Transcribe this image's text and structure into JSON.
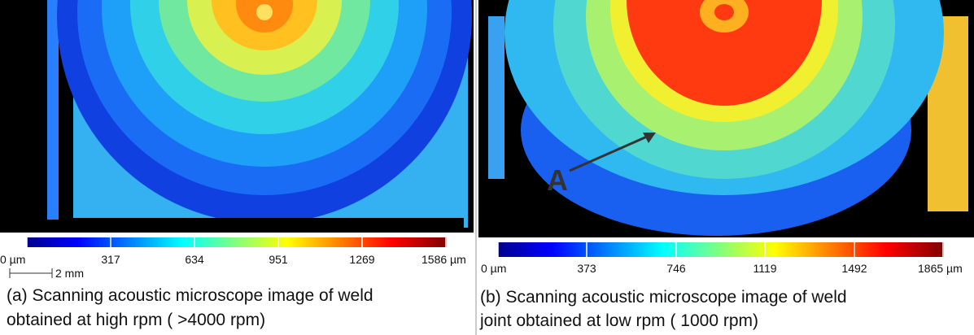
{
  "panels": [
    {
      "colorbar": {
        "ticks": [
          "0 µm",
          "317",
          "634",
          "951",
          "1269",
          "1586 µm"
        ]
      },
      "scale_bar": "2 mm",
      "caption": [
        "(a) Scanning acoustic microscope image of weld",
        "obtained at high  rpm ( >4000 rpm)"
      ]
    },
    {
      "colorbar": {
        "ticks": [
          "0 µm",
          "373",
          "746",
          "1119",
          "1492",
          "1865 µm"
        ]
      },
      "annotation": "A",
      "caption": [
        "(b) Scanning acoustic microscope image of weld",
        "joint obtained at low rpm ( 1000 rpm)"
      ]
    }
  ]
}
